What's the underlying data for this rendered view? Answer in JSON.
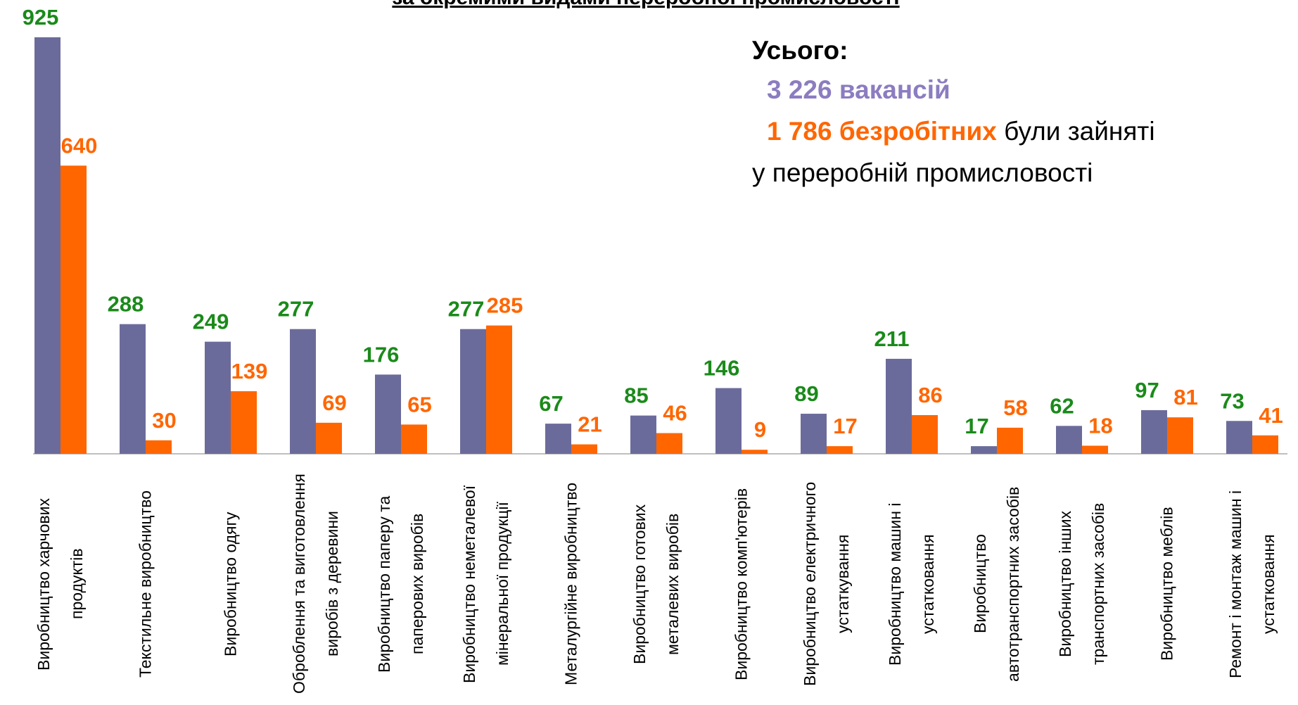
{
  "chart_data": {
    "type": "bar",
    "title": "за окремими видами переробної промисловості",
    "annotation": {
      "heading": "Усього:",
      "vacancies": "3 226 вакансій",
      "unemployed": "1 786 безробітних",
      "text1": "були зайняті",
      "text2": "у переробній промисловості"
    },
    "categories": [
      "Виробництво харчових продуктів",
      "Текстильне виробництво",
      "Виробництво одягу",
      "Оброблення та виготовлення виробів з деревини",
      "Виробництво паперу та паперових виробів",
      "Виробництво неметалевої мінеральної продукції",
      "Металургійне виробництво",
      "Виробництво готових металевих виробів",
      "Виробництво комп'ютерів",
      "Виробництво електричного устаткування",
      "Виробництво машин і устатковання",
      "Виробництво автотранспортних засобів",
      "Виробництво інших транспортних засобів",
      "Виробництво меблів",
      "Ремонт і монтаж машин і устатковання"
    ],
    "series": [
      {
        "color": "#6b6b9b",
        "label_color": "#1a8a1a",
        "values": [
          925,
          288,
          249,
          277,
          176,
          277,
          67,
          85,
          146,
          89,
          211,
          17,
          62,
          97,
          73
        ]
      },
      {
        "color": "#ff6600",
        "label_color": "#ff6600",
        "values": [
          640,
          30,
          139,
          69,
          65,
          285,
          21,
          46,
          9,
          17,
          86,
          58,
          18,
          81,
          41
        ]
      }
    ],
    "ylim": [
      0,
      1000
    ]
  }
}
